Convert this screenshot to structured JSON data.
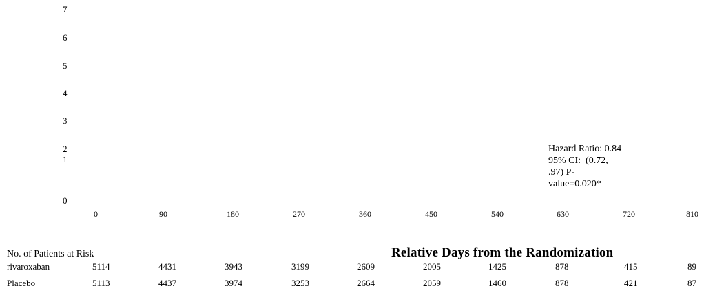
{
  "chart_data": {
    "type": "line",
    "title": "",
    "xlabel": "Relative Days from the Randomization",
    "ylabel": "",
    "x_ticks": [
      "0",
      "90",
      "180",
      "270",
      "360",
      "450",
      "540",
      "630",
      "720",
      "810"
    ],
    "y_ticks": [
      "0",
      "1",
      "2",
      "3",
      "4",
      "5",
      "6",
      "7"
    ],
    "xlim": [
      0,
      810
    ],
    "ylim": [
      0,
      7
    ],
    "series": [],
    "annotation": {
      "line1": "Hazard Ratio: 0.84",
      "line2": "95% CI:  (0.72,",
      "line3": ".97) P-",
      "line4": "value=0.020*"
    }
  },
  "risk_table": {
    "title": "No. of Patients at Risk",
    "rows": [
      {
        "label": "rivaroxaban",
        "values": [
          "5114",
          "4431",
          "3943",
          "3199",
          "2609",
          "2005",
          "1425",
          "878",
          "415",
          "89"
        ]
      },
      {
        "label": "Placebo",
        "values": [
          "5113",
          "4437",
          "3974",
          "3253",
          "2664",
          "2059",
          "1460",
          "878",
          "421",
          "87"
        ]
      }
    ]
  }
}
